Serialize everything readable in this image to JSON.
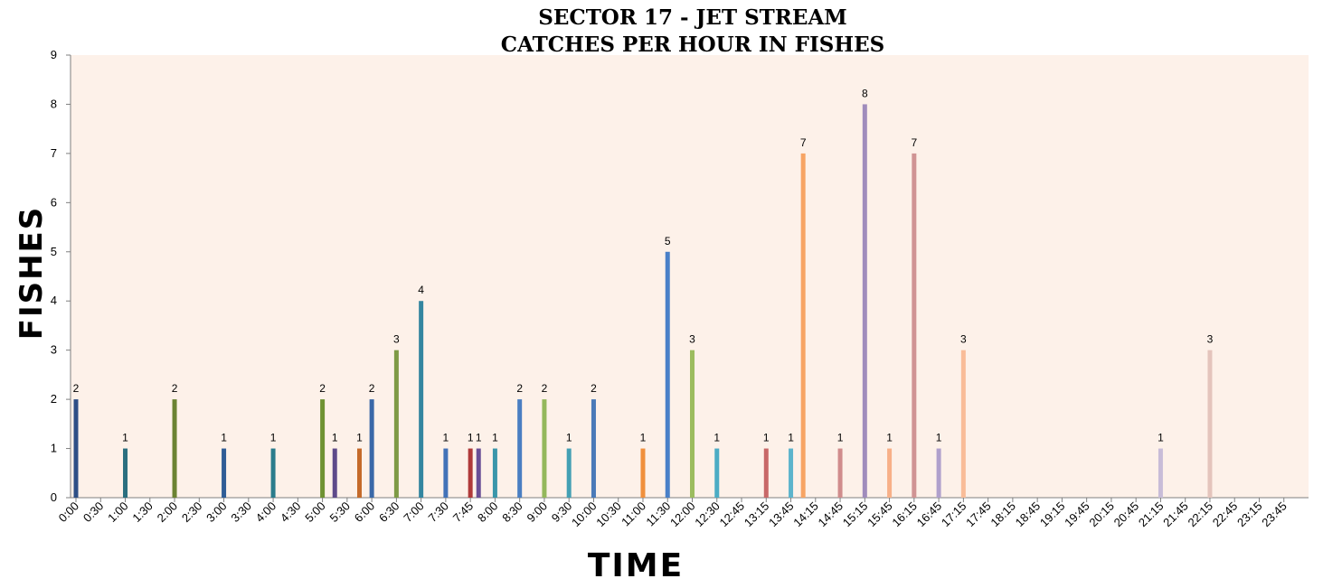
{
  "chart_data": {
    "type": "bar",
    "title": "SECTOR 17 - JET STREAM",
    "subtitle": "CATCHES PER HOUR IN FISHES",
    "xlabel": "TIME",
    "ylabel": "FISHES",
    "ylim": [
      0,
      9
    ],
    "yticks": [
      "0",
      "1",
      "2",
      "3",
      "4",
      "5",
      "6",
      "7",
      "8",
      "9"
    ],
    "grid": false,
    "legend": "none",
    "plot_background": "#fdf1e9",
    "x_tick_labels": [
      "0:00",
      "0:30",
      "1:00",
      "1:30",
      "2:00",
      "2:30",
      "3:00",
      "3:30",
      "4:00",
      "4:30",
      "5:00",
      "5:30",
      "6:00",
      "6:30",
      "7:00",
      "7:30",
      "7:45",
      "8:00",
      "8:30",
      "9:00",
      "9:30",
      "10:00",
      "10:30",
      "11:00",
      "11:30",
      "12:00",
      "12:30",
      "12:45",
      "13:15",
      "13:45",
      "14:15",
      "14:45",
      "15:15",
      "15:45",
      "16:15",
      "16:45",
      "17:15",
      "17:45",
      "18:15",
      "18:45",
      "19:15",
      "19:45",
      "20:15",
      "20:45",
      "21:15",
      "21:45",
      "22:15",
      "22:45",
      "23:15",
      "23:45"
    ],
    "bars": [
      {
        "x": "0:00",
        "value": 2,
        "color": "#2e4f86"
      },
      {
        "x": "1:00",
        "value": 1,
        "color": "#2a6f7f"
      },
      {
        "x": "2:00",
        "value": 2,
        "color": "#6b8333"
      },
      {
        "x": "3:00",
        "value": 1,
        "color": "#2f5d96"
      },
      {
        "x": "4:00",
        "value": 1,
        "color": "#2a7c8c"
      },
      {
        "x": "5:00",
        "value": 2,
        "color": "#6f9232"
      },
      {
        "x": "5:15",
        "value": 1,
        "color": "#5e4a8a"
      },
      {
        "x": "5:45",
        "value": 1,
        "color": "#c56a2a"
      },
      {
        "x": "6:00",
        "value": 2,
        "color": "#3a68a8"
      },
      {
        "x": "6:30",
        "value": 3,
        "color": "#7e9a45"
      },
      {
        "x": "7:00",
        "value": 4,
        "color": "#3486a0"
      },
      {
        "x": "7:30",
        "value": 1,
        "color": "#4272b8"
      },
      {
        "x": "7:45",
        "value": 1,
        "color": "#b03a3a"
      },
      {
        "x": "7:50",
        "value": 1,
        "color": "#6a4f96"
      },
      {
        "x": "8:00",
        "value": 1,
        "color": "#3a96aa"
      },
      {
        "x": "8:30",
        "value": 2,
        "color": "#4a7ec2"
      },
      {
        "x": "9:00",
        "value": 2,
        "color": "#94b85c"
      },
      {
        "x": "9:30",
        "value": 1,
        "color": "#44a0b4"
      },
      {
        "x": "10:00",
        "value": 2,
        "color": "#4a7ab8"
      },
      {
        "x": "11:00",
        "value": 1,
        "color": "#f0903c"
      },
      {
        "x": "11:30",
        "value": 5,
        "color": "#4a80c8"
      },
      {
        "x": "12:00",
        "value": 3,
        "color": "#9cbc5e"
      },
      {
        "x": "12:30",
        "value": 1,
        "color": "#4cacc4"
      },
      {
        "x": "13:15",
        "value": 1,
        "color": "#c86868"
      },
      {
        "x": "13:45",
        "value": 1,
        "color": "#5cb4cc"
      },
      {
        "x": "14:00",
        "value": 7,
        "color": "#f7a464"
      },
      {
        "x": "14:45",
        "value": 1,
        "color": "#d08c8c"
      },
      {
        "x": "15:15",
        "value": 8,
        "color": "#a08cbc"
      },
      {
        "x": "15:45",
        "value": 1,
        "color": "#f8b088"
      },
      {
        "x": "16:15",
        "value": 7,
        "color": "#d09494"
      },
      {
        "x": "16:45",
        "value": 1,
        "color": "#b0a0cc"
      },
      {
        "x": "17:15",
        "value": 3,
        "color": "#f9bc98"
      },
      {
        "x": "21:15",
        "value": 1,
        "color": "#c8bcd8"
      },
      {
        "x": "22:15",
        "value": 3,
        "color": "#e4c4bc"
      }
    ]
  }
}
